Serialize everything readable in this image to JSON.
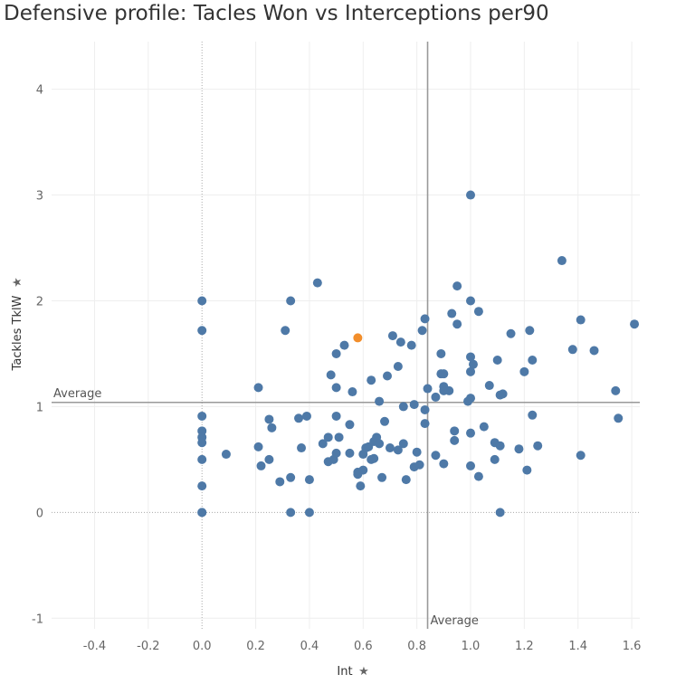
{
  "title": "Defensive profile: Tacles Won vs Interceptions per90",
  "chart_data": {
    "type": "scatter",
    "title": "Defensive profile: Tacles Won vs Interceptions per90",
    "xlabel": "Int",
    "ylabel": "Tackles TklW",
    "xlim": [
      -0.56,
      1.63
    ],
    "ylim": [
      -1.1,
      4.45
    ],
    "x_ticks": [
      -0.4,
      -0.2,
      0.0,
      0.2,
      0.4,
      0.6,
      0.8,
      1.0,
      1.2,
      1.4,
      1.6
    ],
    "x_tick_labels": [
      "-0.4",
      "-0.2",
      "0.0",
      "0.2",
      "0.4",
      "0.6",
      "0.8",
      "1.0",
      "1.2",
      "1.4",
      "1.6"
    ],
    "y_ticks": [
      -1,
      0,
      1,
      2,
      3,
      4
    ],
    "y_tick_labels": [
      "-1",
      "0",
      "1",
      "2",
      "3",
      "4"
    ],
    "grid": true,
    "reference_lines": [
      {
        "axis": "x",
        "value": 0.84,
        "label": "Average"
      },
      {
        "axis": "y",
        "value": 1.04,
        "label": "Average"
      }
    ],
    "colors": {
      "default": "#4e79a7",
      "highlight": "#f28e2b",
      "gridline": "#eeeeee",
      "zeroline": "#aaaaaa",
      "refline": "#999999"
    },
    "series": [
      {
        "color": "#4e79a7",
        "points": [
          [
            0,
            2.0
          ],
          [
            0,
            1.72
          ],
          [
            0,
            0.91
          ],
          [
            0,
            0.77
          ],
          [
            0,
            0.71
          ],
          [
            0,
            0.66
          ],
          [
            0,
            0.5
          ],
          [
            0,
            0.25
          ],
          [
            0,
            0.0
          ],
          [
            0,
            0.0
          ],
          [
            0.09,
            0.55
          ],
          [
            0.21,
            1.18
          ],
          [
            0.21,
            0.62
          ],
          [
            0.22,
            0.44
          ],
          [
            0.25,
            0.88
          ],
          [
            0.25,
            0.5
          ],
          [
            0.26,
            0.8
          ],
          [
            0.29,
            0.29
          ],
          [
            0.31,
            1.72
          ],
          [
            0.33,
            2.0
          ],
          [
            0.33,
            0.33
          ],
          [
            0.33,
            0.0
          ],
          [
            0.36,
            0.89
          ],
          [
            0.37,
            0.61
          ],
          [
            0.39,
            0.91
          ],
          [
            0.4,
            0.31
          ],
          [
            0.4,
            0.0
          ],
          [
            0.43,
            2.17
          ],
          [
            0.45,
            0.65
          ],
          [
            0.47,
            0.71
          ],
          [
            0.47,
            0.48
          ],
          [
            0.48,
            1.3
          ],
          [
            0.49,
            0.5
          ],
          [
            0.5,
            1.5
          ],
          [
            0.5,
            1.18
          ],
          [
            0.5,
            0.91
          ],
          [
            0.5,
            0.56
          ],
          [
            0.51,
            0.71
          ],
          [
            0.53,
            1.58
          ],
          [
            0.55,
            0.83
          ],
          [
            0.55,
            0.56
          ],
          [
            0.56,
            1.14
          ],
          [
            0.58,
            0.38
          ],
          [
            0.58,
            0.36
          ],
          [
            0.59,
            0.25
          ],
          [
            0.6,
            0.55
          ],
          [
            0.6,
            0.4
          ],
          [
            0.61,
            0.61
          ],
          [
            0.62,
            0.62
          ],
          [
            0.63,
            1.25
          ],
          [
            0.63,
            0.5
          ],
          [
            0.64,
            0.51
          ],
          [
            0.64,
            0.67
          ],
          [
            0.65,
            0.71
          ],
          [
            0.66,
            0.65
          ],
          [
            0.66,
            1.05
          ],
          [
            0.67,
            0.33
          ],
          [
            0.68,
            0.86
          ],
          [
            0.69,
            1.29
          ],
          [
            0.7,
            0.61
          ],
          [
            0.71,
            1.67
          ],
          [
            0.73,
            1.38
          ],
          [
            0.73,
            0.59
          ],
          [
            0.74,
            1.61
          ],
          [
            0.75,
            0.65
          ],
          [
            0.75,
            1.0
          ],
          [
            0.76,
            0.31
          ],
          [
            0.78,
            1.58
          ],
          [
            0.79,
            1.02
          ],
          [
            0.79,
            0.43
          ],
          [
            0.8,
            0.57
          ],
          [
            0.81,
            0.45
          ],
          [
            0.82,
            1.72
          ],
          [
            0.83,
            1.83
          ],
          [
            0.83,
            0.97
          ],
          [
            0.83,
            0.84
          ],
          [
            0.84,
            1.17
          ],
          [
            0.87,
            1.09
          ],
          [
            0.87,
            0.54
          ],
          [
            0.89,
            1.5
          ],
          [
            0.89,
            1.31
          ],
          [
            0.9,
            1.31
          ],
          [
            0.9,
            1.19
          ],
          [
            0.9,
            1.15
          ],
          [
            0.9,
            0.46
          ],
          [
            0.92,
            1.15
          ],
          [
            0.93,
            1.88
          ],
          [
            0.94,
            0.77
          ],
          [
            0.94,
            0.68
          ],
          [
            0.95,
            2.14
          ],
          [
            0.95,
            1.78
          ],
          [
            0.99,
            1.05
          ],
          [
            1.0,
            3.0
          ],
          [
            1.0,
            2.0
          ],
          [
            1.0,
            1.47
          ],
          [
            1.0,
            1.33
          ],
          [
            1.0,
            1.08
          ],
          [
            1.0,
            0.75
          ],
          [
            1.0,
            0.44
          ],
          [
            1.01,
            1.4
          ],
          [
            1.03,
            1.9
          ],
          [
            1.03,
            0.34
          ],
          [
            1.05,
            0.81
          ],
          [
            1.07,
            1.2
          ],
          [
            1.09,
            0.5
          ],
          [
            1.09,
            0.66
          ],
          [
            1.1,
            1.44
          ],
          [
            1.11,
            0.63
          ],
          [
            1.11,
            1.11
          ],
          [
            1.11,
            0.0
          ],
          [
            1.12,
            1.12
          ],
          [
            1.15,
            1.69
          ],
          [
            1.18,
            0.6
          ],
          [
            1.2,
            1.33
          ],
          [
            1.21,
            0.4
          ],
          [
            1.22,
            1.72
          ],
          [
            1.23,
            1.44
          ],
          [
            1.23,
            0.92
          ],
          [
            1.25,
            0.63
          ],
          [
            1.34,
            2.38
          ],
          [
            1.38,
            1.54
          ],
          [
            1.41,
            1.82
          ],
          [
            1.41,
            0.54
          ],
          [
            1.46,
            1.53
          ],
          [
            1.54,
            1.15
          ],
          [
            1.55,
            0.89
          ],
          [
            1.61,
            1.78
          ]
        ]
      },
      {
        "color": "#f28e2b",
        "points": [
          [
            0.58,
            1.65
          ]
        ]
      }
    ]
  }
}
